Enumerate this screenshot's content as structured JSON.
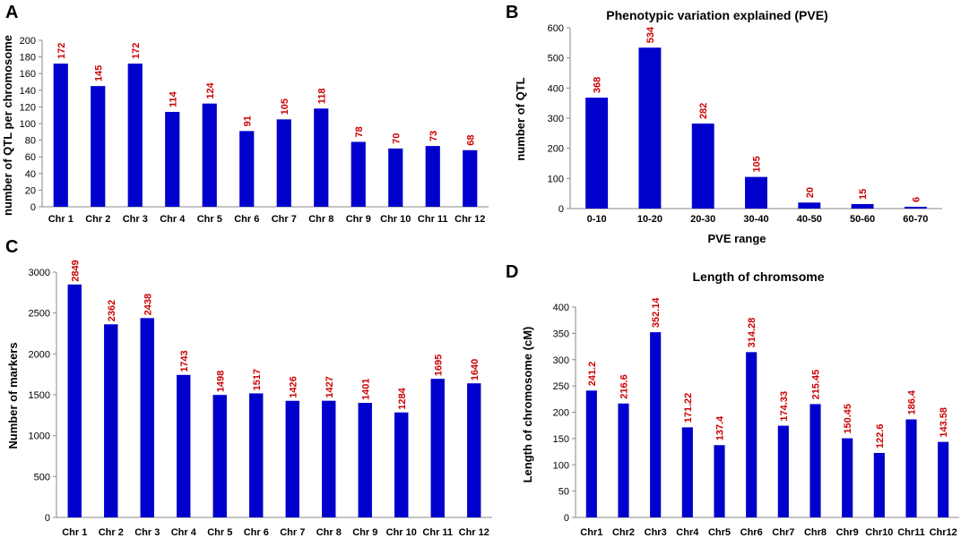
{
  "colors": {
    "bar": "#0000cc",
    "label": "#cc0000",
    "axis": "#888888",
    "text": "#000000"
  },
  "chart_data": [
    {
      "panel": "A",
      "type": "bar",
      "title": "",
      "xlabel": "",
      "ylabel": "number of QTL per chromosome",
      "ylim": [
        0,
        200
      ],
      "yticks": [
        0,
        20,
        40,
        60,
        80,
        100,
        120,
        140,
        160,
        180,
        200
      ],
      "categories": [
        "Chr 1",
        "Chr 2",
        "Chr 3",
        "Chr 4",
        "Chr 5",
        "Chr 6",
        "Chr 7",
        "Chr 8",
        "Chr 9",
        "Chr 10",
        "Chr 11",
        "Chr 12"
      ],
      "values": [
        172,
        145,
        172,
        114,
        124,
        91,
        105,
        118,
        78,
        70,
        73,
        68
      ],
      "labels": [
        "172",
        "145",
        "172",
        "114",
        "124",
        "91",
        "105",
        "118",
        "78",
        "70",
        "73",
        "68"
      ],
      "grid": false
    },
    {
      "panel": "B",
      "type": "bar",
      "title": "Phenotypic variation explained (PVE)",
      "xlabel": "PVE range",
      "ylabel": "number of QTL",
      "ylim": [
        0,
        600
      ],
      "yticks": [
        0,
        100,
        200,
        300,
        400,
        500,
        600
      ],
      "categories": [
        "0-10",
        "10-20",
        "20-30",
        "30-40",
        "40-50",
        "50-60",
        "60-70"
      ],
      "values": [
        368,
        534,
        282,
        105,
        20,
        15,
        6
      ],
      "labels": [
        "368",
        "534",
        "282",
        "105",
        "20",
        "15",
        "6"
      ],
      "grid": false
    },
    {
      "panel": "C",
      "type": "bar",
      "title": "",
      "xlabel": "",
      "ylabel": "Number of markers",
      "ylim": [
        0,
        3000
      ],
      "yticks": [
        0,
        500,
        1000,
        1500,
        2000,
        2500,
        3000
      ],
      "categories": [
        "Chr 1",
        "Chr 2",
        "Chr 3",
        "Chr 4",
        "Chr 5",
        "Chr 6",
        "Chr 7",
        "Chr 8",
        "Chr 9",
        "Chr 10",
        "Chr 11",
        "Chr 12"
      ],
      "values": [
        2849,
        2362,
        2438,
        1743,
        1498,
        1517,
        1426,
        1427,
        1401,
        1284,
        1695,
        1640
      ],
      "labels": [
        "2849",
        "2362",
        "2438",
        "1743",
        "1498",
        "1517",
        "1426",
        "1427",
        "1401",
        "1284",
        "1695",
        "1640"
      ],
      "grid": false
    },
    {
      "panel": "D",
      "type": "bar",
      "title": "Length of chromsome",
      "xlabel": "",
      "ylabel": "Length of chromosome (cM)",
      "ylim": [
        0,
        400
      ],
      "yticks": [
        0,
        50,
        100,
        150,
        200,
        250,
        300,
        350,
        400
      ],
      "categories": [
        "Chr1",
        "Chr2",
        "Chr3",
        "Chr4",
        "Chr5",
        "Chr6",
        "Chr7",
        "Chr8",
        "Chr9",
        "Chr10",
        "Chr11",
        "Chr12"
      ],
      "values": [
        241.2,
        216.6,
        352.14,
        171.22,
        137.4,
        314.28,
        174.33,
        215.45,
        150.45,
        122.6,
        186.4,
        143.58
      ],
      "labels": [
        "241.2",
        "216.6",
        "352.14",
        "171.22",
        "137.4",
        "314.28",
        "174.33",
        "215.45",
        "150.45",
        "122.6",
        "186.4",
        "143.58"
      ],
      "grid": false
    }
  ]
}
